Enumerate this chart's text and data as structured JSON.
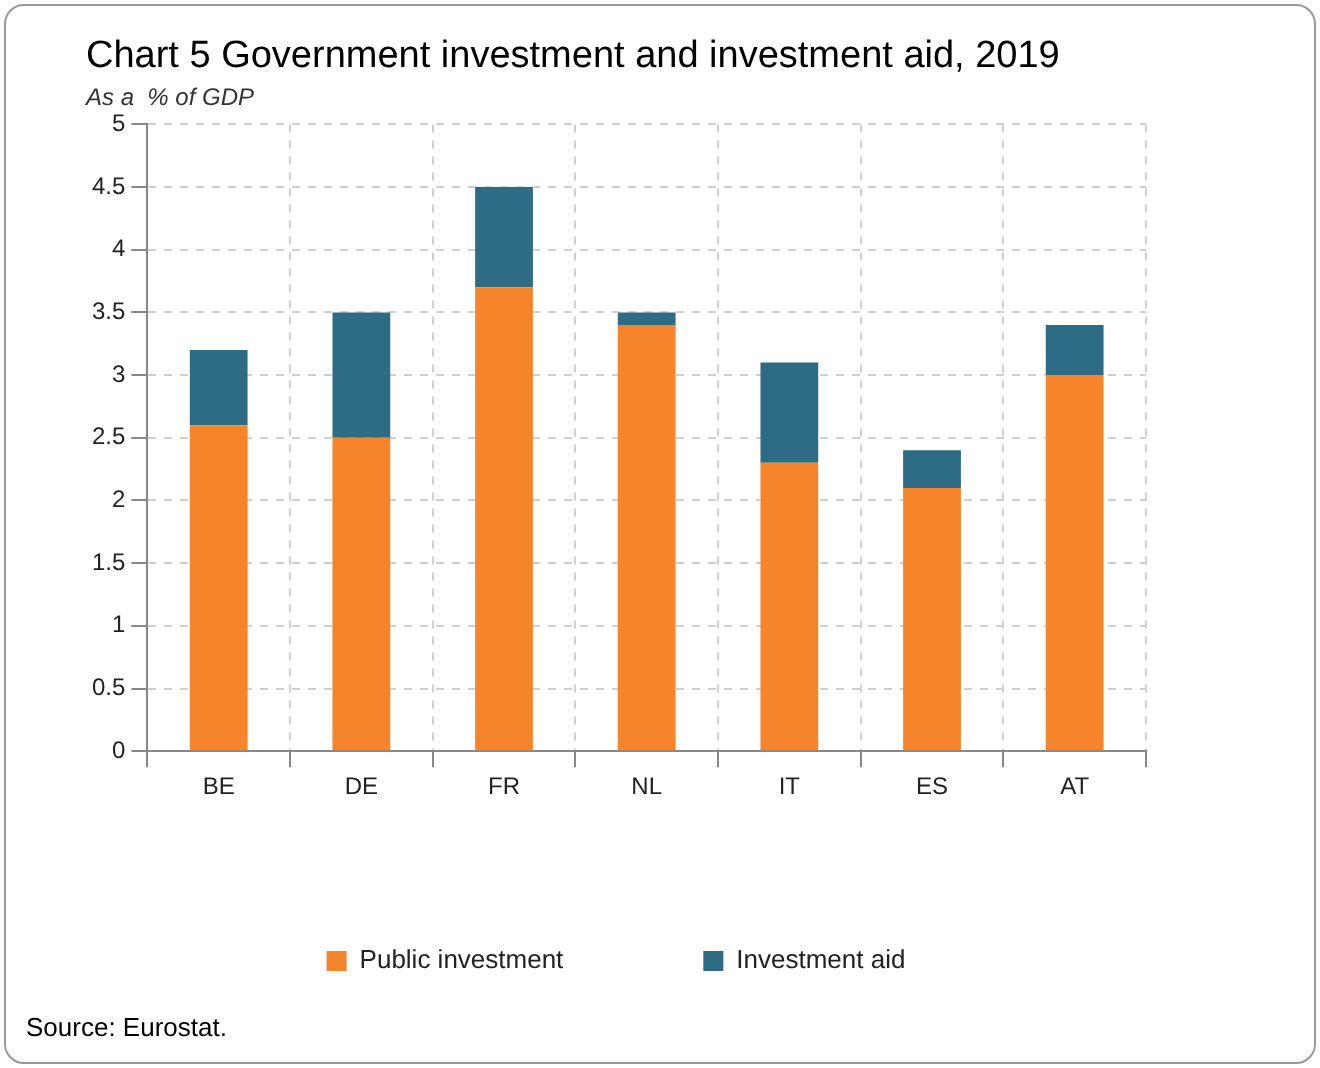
{
  "chart_data": {
    "type": "bar",
    "title": "Chart 5 Government investment and investment aid, 2019",
    "subtitle": "As a  % of GDP",
    "categories": [
      "BE",
      "DE",
      "FR",
      "NL",
      "IT",
      "ES",
      "AT"
    ],
    "stacked": true,
    "series": [
      {
        "name": "Public investment",
        "color": "#f5842a",
        "values": [
          2.6,
          2.5,
          3.7,
          3.4,
          2.3,
          2.1,
          3.0
        ]
      },
      {
        "name": "Investment aid",
        "color": "#2e6b84",
        "values": [
          0.6,
          1.0,
          0.8,
          0.1,
          0.8,
          0.3,
          0.4
        ]
      }
    ],
    "ylim": [
      0,
      5
    ],
    "yticks": [
      0,
      0.5,
      1,
      1.5,
      2,
      2.5,
      3,
      3.5,
      4,
      4.5,
      5
    ],
    "grid": true,
    "legend": "bottom",
    "annotations": [
      "Source: Eurostat."
    ]
  }
}
